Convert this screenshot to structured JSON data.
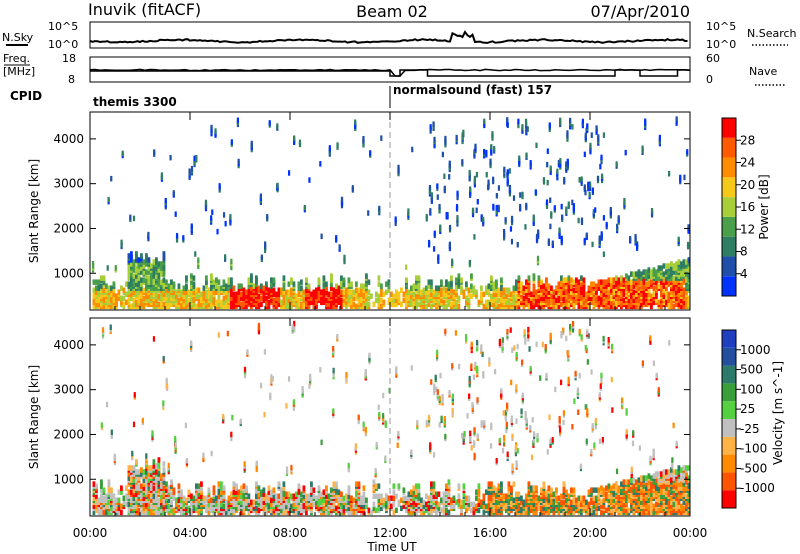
{
  "header": {
    "station": "Inuvik (fitACF)",
    "beam": "Beam 02",
    "date": "07/Apr/2010"
  },
  "top_panels": {
    "nsky_label": "N.Sky",
    "nsky_ticks": [
      "10^5",
      "10^0"
    ],
    "nsearch_label": "N.Search",
    "nsearch_ticks": [
      "10^5",
      "10^0"
    ],
    "freq_label_1": "Freq.",
    "freq_label_2": "[MHz]",
    "freq_ticks": [
      "18",
      "8"
    ],
    "nave_label": "Nave",
    "nave_ticks": [
      "60",
      "0"
    ],
    "cpid_label": "CPID",
    "cpid_1": "themis 3300",
    "cpid_2": "normalsound (fast) 157",
    "cpid_switch_hour": 12.0
  },
  "colors": {
    "power_scale": [
      "#0033ff",
      "#1f4fa8",
      "#2f7d62",
      "#4aa04a",
      "#a8cf3a",
      "#f6c81a",
      "#ff8c00",
      "#ff5a00",
      "#ff0000"
    ],
    "velocity_scale": [
      "#ff0000",
      "#ff5500",
      "#ff8a00",
      "#ffb347",
      "#c0c0c0",
      "#55d040",
      "#3a9e3a",
      "#2e7a6a",
      "#244f9e",
      "#1f3fbf"
    ]
  },
  "chart_data": [
    {
      "type": "heatmap",
      "title": "Power",
      "xlabel": "",
      "ylabel": "Slant Range [km]",
      "colorbar_label": "Power [dB]",
      "colorbar_ticks": [
        "4",
        "8",
        "12",
        "16",
        "20",
        "24",
        "28"
      ],
      "xlim_hours": [
        0,
        24
      ],
      "ylim_km": [
        180,
        4600
      ],
      "yticks": [
        "1000",
        "2000",
        "3000",
        "4000"
      ],
      "dashed_line_hour": 12.0
    },
    {
      "type": "heatmap",
      "title": "Velocity",
      "xlabel": "Time UT",
      "ylabel": "Slant Range [km]",
      "colorbar_label": "Velocity [m s^-1]",
      "colorbar_ticks": [
        "-1000",
        "-500",
        "-100",
        "-25",
        "25",
        "100",
        "500",
        "1000"
      ],
      "xlim_hours": [
        0,
        24
      ],
      "ylim_km": [
        180,
        4600
      ],
      "xticks": [
        "00:00",
        "04:00",
        "08:00",
        "12:00",
        "16:00",
        "20:00",
        "00:00"
      ],
      "yticks": [
        "1000",
        "2000",
        "3000",
        "4000"
      ],
      "dashed_line_hour": 12.0
    }
  ]
}
